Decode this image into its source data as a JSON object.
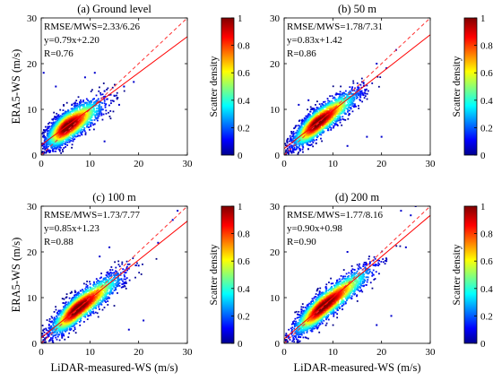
{
  "chart_data": [
    {
      "type": "scatter",
      "title": "(a) Ground level",
      "xlabel": "",
      "ylabel": "ERA5-WS (m/s)",
      "xlim": [
        0,
        30
      ],
      "ylim": [
        0,
        30
      ],
      "xticks": [
        "0",
        "10",
        "20",
        "30"
      ],
      "yticks": [
        "0",
        "10",
        "20",
        "30"
      ],
      "stats": {
        "rmse_mws": "RMSE/MWS=2.33/6.26",
        "fit": "y=0.79x+2.20",
        "r": "R=0.76"
      },
      "fit_line": {
        "slope": 0.79,
        "intercept": 2.2
      },
      "identity_line": {
        "slope": 1,
        "intercept": 0
      },
      "density_core": {
        "x_mean": 5.3,
        "y_mean": 6.2,
        "x_sd": 2.8,
        "y_sd": 2.5,
        "corr": 0.76
      },
      "outliers": [
        [
          0.5,
          18
        ],
        [
          3,
          15
        ],
        [
          13,
          3
        ],
        [
          15,
          13
        ],
        [
          17,
          15
        ],
        [
          19,
          16
        ],
        [
          13,
          14
        ],
        [
          16,
          11
        ],
        [
          9,
          17
        ],
        [
          11,
          18
        ]
      ],
      "colorbar": {
        "label": "Scatter density",
        "ticks": [
          "0",
          "0.2",
          "0.4",
          "0.6",
          "0.8",
          "1"
        ],
        "range": [
          0,
          1
        ]
      }
    },
    {
      "type": "scatter",
      "title": "(b) 50 m",
      "xlabel": "",
      "ylabel": "",
      "xlim": [
        0,
        30
      ],
      "ylim": [
        0,
        30
      ],
      "xticks": [
        "0",
        "10",
        "20",
        "30"
      ],
      "yticks": [
        "0",
        "10",
        "20",
        "30"
      ],
      "stats": {
        "rmse_mws": "RMSE/MWS=1.78/7.31",
        "fit": "y=0.83x+1.42",
        "r": "R=0.86"
      },
      "fit_line": {
        "slope": 0.83,
        "intercept": 1.42
      },
      "identity_line": {
        "slope": 1,
        "intercept": 0
      },
      "density_core": {
        "x_mean": 6.8,
        "y_mean": 7.0,
        "x_sd": 3.2,
        "y_sd": 2.9,
        "corr": 0.86
      },
      "outliers": [
        [
          13,
          2
        ],
        [
          17,
          4
        ],
        [
          20,
          4
        ],
        [
          19,
          20
        ],
        [
          16,
          16
        ],
        [
          23,
          23
        ],
        [
          21,
          19
        ],
        [
          5,
          12
        ],
        [
          3,
          11
        ]
      ],
      "colorbar": {
        "label": "Scatter density",
        "ticks": [
          "0",
          "0.2",
          "0.4",
          "0.6",
          "0.8",
          "1"
        ],
        "range": [
          0,
          1
        ]
      }
    },
    {
      "type": "scatter",
      "title": "(c) 100 m",
      "xlabel": "LiDAR-measured-WS (m/s)",
      "ylabel": "ERA5-WS (m/s)",
      "xlim": [
        0,
        30
      ],
      "ylim": [
        0,
        30
      ],
      "xticks": [
        "0",
        "10",
        "20",
        "30"
      ],
      "yticks": [
        "0",
        "10",
        "20",
        "30"
      ],
      "stats": {
        "rmse_mws": "RMSE/MWS=1.73/7.77",
        "fit": "y=0.85x+1.23",
        "r": "R=0.88"
      },
      "fit_line": {
        "slope": 0.85,
        "intercept": 1.23
      },
      "identity_line": {
        "slope": 1,
        "intercept": 0
      },
      "density_core": {
        "x_mean": 7.4,
        "y_mean": 7.5,
        "x_sd": 3.5,
        "y_sd": 3.2,
        "corr": 0.88
      },
      "outliers": [
        [
          28,
          29
        ],
        [
          27,
          27
        ],
        [
          18,
          3
        ],
        [
          21,
          5
        ],
        [
          24,
          22
        ],
        [
          20,
          17
        ],
        [
          12,
          19
        ],
        [
          14,
          21
        ]
      ],
      "colorbar": {
        "label": "Scatter density",
        "ticks": [
          "0",
          "0.2",
          "0.4",
          "0.6",
          "0.8",
          "1"
        ],
        "range": [
          0,
          1
        ]
      }
    },
    {
      "type": "scatter",
      "title": "(d) 200 m",
      "xlabel": "LiDAR-measured-WS (m/s)",
      "ylabel": "",
      "xlim": [
        0,
        30
      ],
      "ylim": [
        0,
        30
      ],
      "xticks": [
        "0",
        "10",
        "20",
        "30"
      ],
      "yticks": [
        "0",
        "10",
        "20",
        "30"
      ],
      "stats": {
        "rmse_mws": "RMSE/MWS=1.77/8.16",
        "fit": "y=0.90x+0.98",
        "r": "R=0.90"
      },
      "fit_line": {
        "slope": 0.9,
        "intercept": 0.98
      },
      "identity_line": {
        "slope": 1,
        "intercept": 0
      },
      "density_core": {
        "x_mean": 7.9,
        "y_mean": 8.0,
        "x_sd": 3.8,
        "y_sd": 3.5,
        "corr": 0.9
      },
      "outliers": [
        [
          24,
          29
        ],
        [
          27,
          30
        ],
        [
          26,
          28
        ],
        [
          19,
          4
        ],
        [
          22,
          6
        ],
        [
          25,
          21
        ],
        [
          21,
          18
        ],
        [
          13,
          20
        ]
      ],
      "colorbar": {
        "label": "Scatter density",
        "ticks": [
          "0",
          "0.2",
          "0.4",
          "0.6",
          "0.8",
          "1"
        ],
        "range": [
          0,
          1
        ]
      }
    }
  ]
}
